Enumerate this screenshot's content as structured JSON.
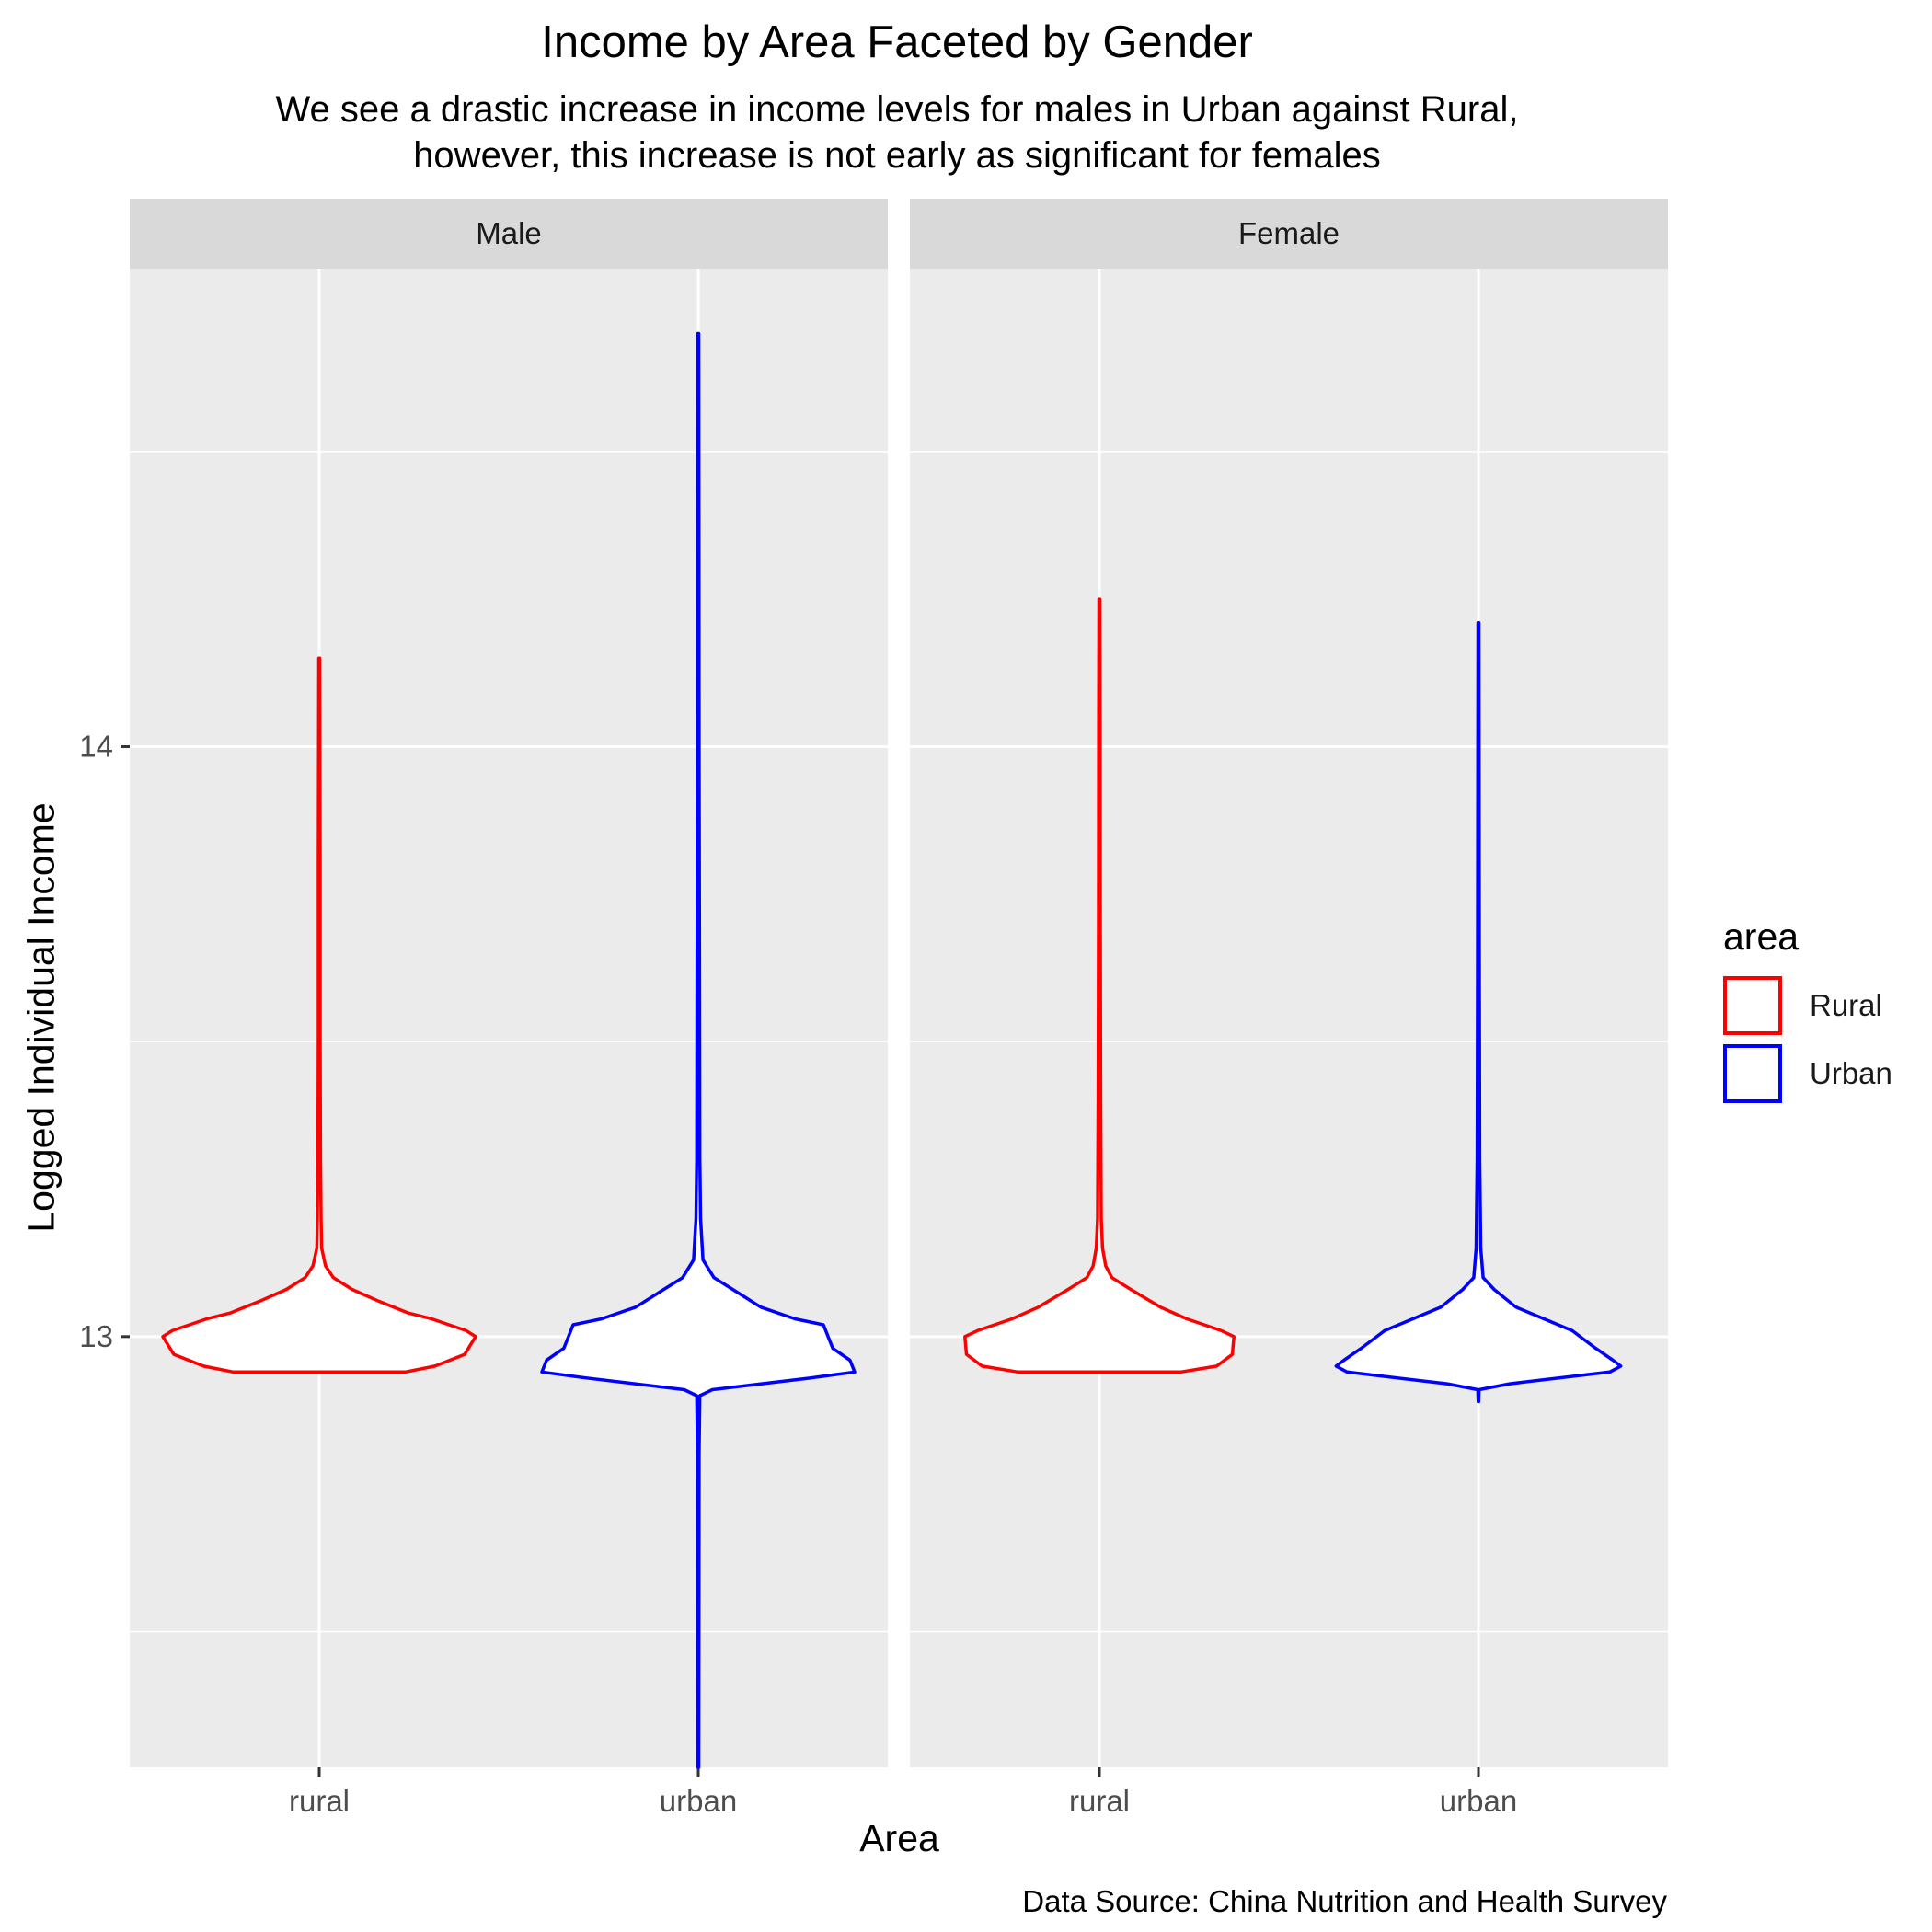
{
  "chart_data": {
    "type": "violin",
    "title": "Income by Area Faceted by Gender",
    "subtitle": [
      "We see a drastic increase in income levels for males in Urban against Rural,",
      "however, this increase is not early as significant for females"
    ],
    "caption": "Data Source: China Nutrition and Health Survey",
    "xlabel": "Area",
    "ylabel": "Logged Individual Income",
    "ylim": [
      12.27,
      14.81
    ],
    "yticks": [
      13,
      14
    ],
    "grid": true,
    "categories": [
      "rural",
      "urban"
    ],
    "facets": [
      {
        "label": "Male",
        "violins": [
          {
            "category": "rural",
            "group": "Rural",
            "color": "#ff0000",
            "profile": [
              [
                12.94,
                0.55
              ],
              [
                12.95,
                0.74
              ],
              [
                12.97,
                0.93
              ],
              [
                13.0,
                1.0
              ],
              [
                13.01,
                0.94
              ],
              [
                13.03,
                0.72
              ],
              [
                13.04,
                0.57
              ],
              [
                13.06,
                0.38
              ],
              [
                13.08,
                0.21
              ],
              [
                13.1,
                0.09
              ],
              [
                13.12,
                0.04
              ],
              [
                13.15,
                0.015
              ],
              [
                13.2,
                0.012
              ],
              [
                13.3,
                0.008
              ],
              [
                13.5,
                0.006
              ],
              [
                13.8,
                0.006
              ],
              [
                14.0,
                0.004
              ],
              [
                14.15,
                0.003
              ]
            ]
          },
          {
            "category": "urban",
            "group": "Urban",
            "color": "#0000ff",
            "profile": [
              [
                12.27,
                0.003
              ],
              [
                12.5,
                0.004
              ],
              [
                12.8,
                0.005
              ],
              [
                12.9,
                0.01
              ],
              [
                12.91,
                0.09
              ],
              [
                12.93,
                0.72
              ],
              [
                12.94,
                1.0
              ],
              [
                12.96,
                0.97
              ],
              [
                12.98,
                0.86
              ],
              [
                13.02,
                0.8
              ],
              [
                13.03,
                0.62
              ],
              [
                13.05,
                0.4
              ],
              [
                13.08,
                0.22
              ],
              [
                13.1,
                0.1
              ],
              [
                13.13,
                0.03
              ],
              [
                13.2,
                0.015
              ],
              [
                13.3,
                0.01
              ],
              [
                13.6,
                0.008
              ],
              [
                14.0,
                0.005
              ],
              [
                14.4,
                0.004
              ],
              [
                14.7,
                0.003
              ]
            ]
          }
        ]
      },
      {
        "label": "Female",
        "violins": [
          {
            "category": "rural",
            "group": "Rural",
            "color": "#ff0000",
            "profile": [
              [
                12.94,
                0.52
              ],
              [
                12.95,
                0.75
              ],
              [
                12.97,
                0.85
              ],
              [
                13.0,
                0.86
              ],
              [
                13.01,
                0.78
              ],
              [
                13.03,
                0.56
              ],
              [
                13.05,
                0.39
              ],
              [
                13.08,
                0.2
              ],
              [
                13.1,
                0.08
              ],
              [
                13.12,
                0.04
              ],
              [
                13.15,
                0.02
              ],
              [
                13.2,
                0.012
              ],
              [
                13.4,
                0.008
              ],
              [
                13.7,
                0.006
              ],
              [
                14.05,
                0.005
              ],
              [
                14.25,
                0.003
              ]
            ]
          },
          {
            "category": "urban",
            "group": "Urban",
            "color": "#0000ff",
            "profile": [
              [
                12.89,
                0.002
              ],
              [
                12.91,
                0.004
              ],
              [
                12.92,
                0.2
              ],
              [
                12.94,
                0.84
              ],
              [
                12.95,
                0.91
              ],
              [
                12.96,
                0.86
              ],
              [
                12.98,
                0.75
              ],
              [
                13.01,
                0.6
              ],
              [
                13.03,
                0.42
              ],
              [
                13.05,
                0.24
              ],
              [
                13.08,
                0.1
              ],
              [
                13.1,
                0.03
              ],
              [
                13.15,
                0.015
              ],
              [
                13.3,
                0.008
              ],
              [
                13.6,
                0.006
              ],
              [
                14.0,
                0.004
              ],
              [
                14.21,
                0.003
              ]
            ]
          }
        ]
      }
    ],
    "legend": {
      "title": "area",
      "position": "right",
      "entries": [
        {
          "label": "Rural",
          "color": "#ff0000"
        },
        {
          "label": "Urban",
          "color": "#0000ff"
        }
      ]
    }
  }
}
